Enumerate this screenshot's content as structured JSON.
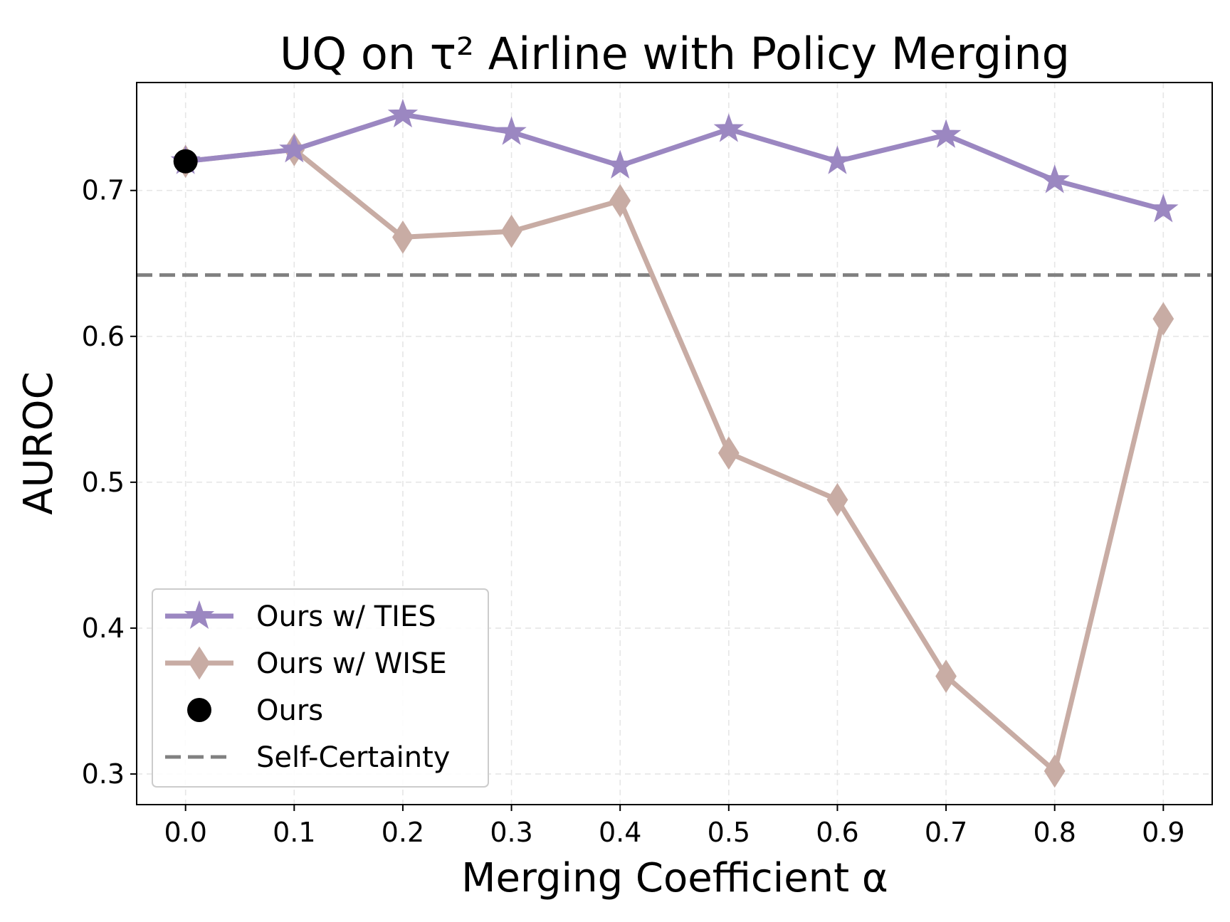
{
  "chart_data": {
    "type": "line",
    "title": "UQ on τ² Airline with Policy Merging",
    "xlabel": "Merging Coefficient α",
    "ylabel": "AUROC",
    "x": [
      0.0,
      0.1,
      0.2,
      0.3,
      0.4,
      0.5,
      0.6,
      0.7,
      0.8,
      0.9
    ],
    "xticks": [
      "0.0",
      "0.1",
      "0.2",
      "0.3",
      "0.4",
      "0.5",
      "0.6",
      "0.7",
      "0.8",
      "0.9"
    ],
    "yticks": [
      "0.3",
      "0.4",
      "0.5",
      "0.6",
      "0.7"
    ],
    "ytick_values": [
      0.3,
      0.4,
      0.5,
      0.6,
      0.7
    ],
    "xlim": [
      -0.045,
      0.945
    ],
    "ylim": [
      0.279,
      0.774
    ],
    "grid": true,
    "legend_position": "lower-left",
    "series": [
      {
        "name": "Ours w/ TIES",
        "marker": "star",
        "color": "#9b87c1",
        "values": [
          0.72,
          0.728,
          0.752,
          0.74,
          0.717,
          0.742,
          0.72,
          0.738,
          0.707,
          0.687
        ]
      },
      {
        "name": "Ours w/ WISE",
        "marker": "diamond",
        "color": "#c8aca4",
        "values": [
          0.72,
          0.728,
          0.668,
          0.672,
          0.693,
          0.52,
          0.488,
          0.367,
          0.302,
          0.612
        ]
      }
    ],
    "points": [
      {
        "name": "Ours",
        "marker": "circle",
        "color": "#000000",
        "x": 0.0,
        "y": 0.72
      }
    ],
    "hlines": [
      {
        "name": "Self-Certainty",
        "style": "dashed",
        "color": "#808080",
        "y": 0.642
      }
    ]
  }
}
